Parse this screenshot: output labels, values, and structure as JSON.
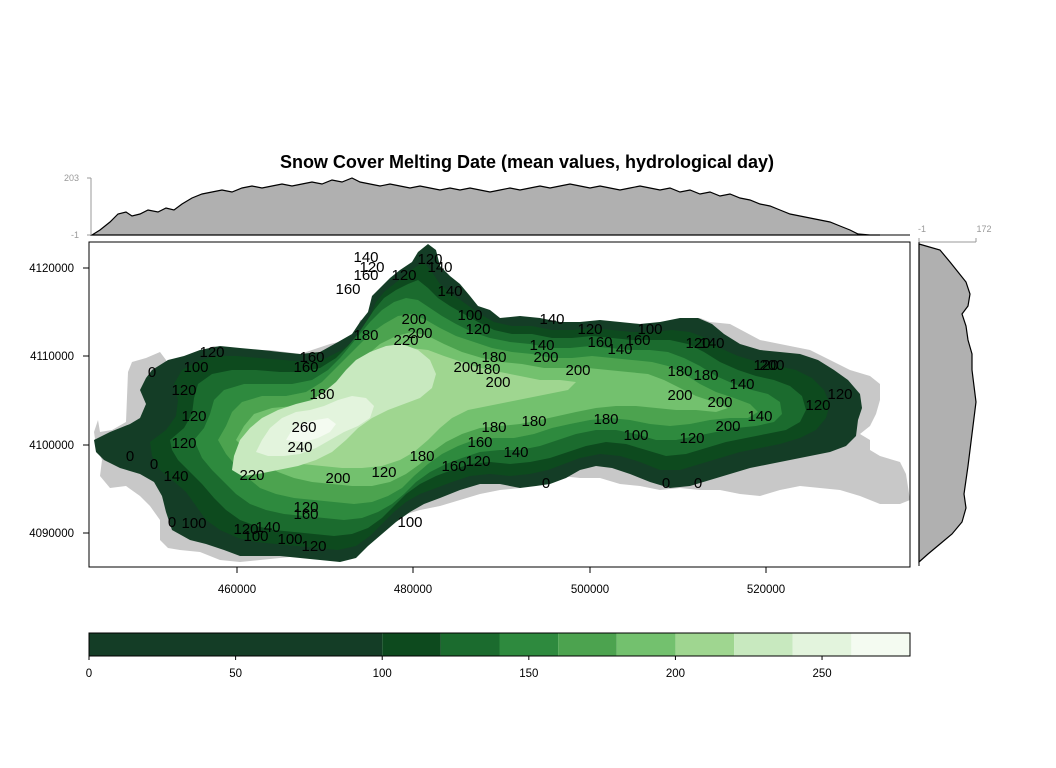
{
  "title": "Snow Cover Melting Date (mean values, hydrological day)",
  "colors": {
    "background": "#ffffff",
    "outside_mask": "#c8c8c8",
    "marginal_fill": "#b0b0b0",
    "classes": [
      "#143d26",
      "#0d4a1e",
      "#1b6b2e",
      "#2e8a3e",
      "#4ca34f",
      "#73c16e",
      "#9fd690",
      "#c8e9bf",
      "#e3f4dd",
      "#f4fbf1"
    ]
  },
  "map": {
    "x_ticks": [
      "460000",
      "480000",
      "500000",
      "520000"
    ],
    "y_ticks": [
      "4120000",
      "4110000",
      "4100000",
      "4090000"
    ],
    "contour_labels": [
      "0",
      "100",
      "120",
      "140",
      "160",
      "180",
      "200",
      "220",
      "240",
      "260"
    ]
  },
  "top_margin": {
    "y_max": "203",
    "y_min": "-1"
  },
  "right_margin": {
    "x_min": "-1",
    "x_max": "172"
  },
  "colorkey": {
    "tick_labels": [
      "0",
      "50",
      "100",
      "150",
      "200",
      "250"
    ],
    "breaks": [
      0,
      100,
      120,
      140,
      160,
      180,
      200,
      220,
      240,
      260,
      280
    ]
  }
}
